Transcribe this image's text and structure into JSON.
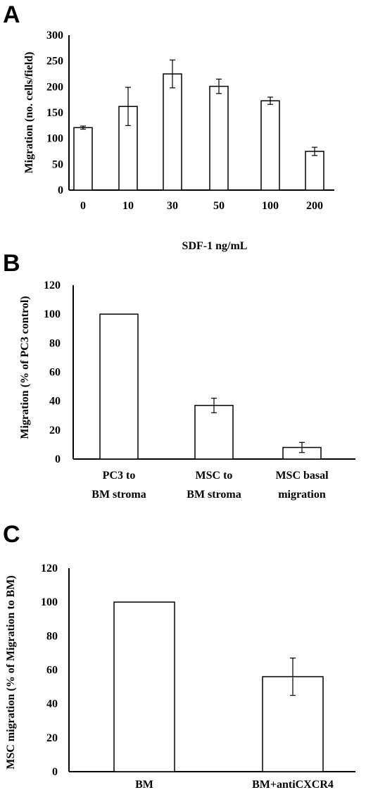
{
  "chart_data": [
    {
      "type": "bar",
      "panel": "A",
      "categories": [
        "0",
        "10",
        "30",
        "50",
        "100",
        "200"
      ],
      "values": [
        121,
        162,
        225,
        201,
        173,
        75
      ],
      "errors": [
        3,
        37,
        27,
        14,
        7,
        8
      ],
      "ylabel": "Migration (no. cells/field)",
      "xlabel": "SDF-1 ng/mL",
      "ylim": [
        0,
        300
      ],
      "yticks": [
        "0",
        "50",
        "100",
        "150",
        "200",
        "250",
        "300"
      ]
    },
    {
      "type": "bar",
      "panel": "B",
      "categories": [
        [
          "PC3 to",
          "BM stroma"
        ],
        [
          "MSC to",
          "BM stroma"
        ],
        [
          "MSC  basal",
          "migration"
        ]
      ],
      "values": [
        100,
        37,
        8
      ],
      "errors": [
        0,
        5,
        3.5
      ],
      "ylabel": "Migration (% of PC3 control)",
      "xlabel": "",
      "ylim": [
        0,
        120
      ],
      "yticks": [
        "0",
        "20",
        "40",
        "60",
        "80",
        "100",
        "120"
      ]
    },
    {
      "type": "bar",
      "panel": "C",
      "categories": [
        [
          "BM"
        ],
        [
          "BM+antiCXCR4"
        ]
      ],
      "values": [
        100,
        56
      ],
      "errors": [
        0,
        11
      ],
      "ylabel": "MSC migration (% of Migration to BM)",
      "xlabel": "",
      "ylim": [
        0,
        120
      ],
      "yticks": [
        "0",
        "20",
        "40",
        "60",
        "80",
        "100",
        "120"
      ]
    }
  ]
}
